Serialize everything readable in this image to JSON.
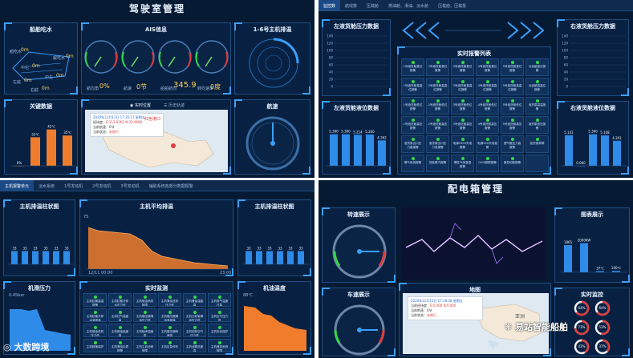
{
  "q1": {
    "title": "驾驶室管理",
    "panels": {
      "ship": "船舶吃水",
      "ais": "AIS信息",
      "exhaust": "1-6号主机排温",
      "key": "关键数据",
      "map_tab1": "实时位置",
      "map_tab2": "历史轨迹",
      "speed": "航速"
    },
    "draft_labels": [
      "艏吃水",
      "艉吃水",
      "中右",
      "中左",
      "左舷",
      "右舷"
    ],
    "draft_values": [
      "0m",
      "0m",
      "0m",
      "0m",
      "0m",
      "0m"
    ],
    "ais": {
      "items": [
        {
          "label": "航向角",
          "value": "0%"
        },
        {
          "label": "航速",
          "value": "0节"
        },
        {
          "label": "船舶航向",
          "value": "345.9"
        },
        {
          "label": "转向速率",
          "value": "0度"
        }
      ],
      "ticks": [
        "0",
        "5",
        "10",
        "15",
        "20",
        "25",
        "30"
      ]
    },
    "key_bars": [
      {
        "label": "0%",
        "value": 0,
        "top": "0%"
      },
      {
        "label": "33℃",
        "value": 33,
        "top": "33℃"
      },
      {
        "label": "42℃",
        "value": 42,
        "top": "42℃"
      },
      {
        "label": "35℃",
        "value": 35,
        "top": "35℃"
      }
    ],
    "popup": {
      "time": "2020年12月11日 17:35:17",
      "status": "星期五",
      "l1": "经纬度：",
      "l2": "当前航速：",
      "l3": "当前状态：",
      "v1": "E:113.9362 N:22.4696",
      "v2": "0节",
      "v3": "未航行",
      "place": "红色港口"
    }
  },
  "q2": {
    "tabs": [
      "监控数",
      "航线数",
      "压载舱",
      "燃油舱、滑油、淡水舱",
      "压载舱、压载泵"
    ],
    "left_top": "左液货舱压力数据",
    "left_bottom": "左液货舱液位数据",
    "right_top": "右液货舱压力数据",
    "right_bottom": "右液货舱液位数据",
    "alarm_title": "实时报警列表",
    "y_ticks": [
      "140",
      "120",
      "100",
      "80",
      "60",
      "40",
      "20",
      "0"
    ],
    "left_bars": [
      5.3,
      5.3,
      5.214,
      5.26,
      4.262
    ],
    "left_labels": [
      "5.300",
      "5.300",
      "5.214",
      "5.260",
      "4.262"
    ],
    "right_bars": [
      5.141,
      0.0,
      5.3,
      5.108,
      4.201
    ],
    "right_labels": [
      "5.141",
      "0.000",
      "5.300",
      "5.108",
      "4.201"
    ],
    "alarm_cells": [
      "1号液货舱高位报警",
      "2号液货舱高位报警",
      "3号液货舱高位报警",
      "4号液货舱高位报警",
      "5号液货舱高位报警",
      "污油舱高位报警",
      "1号液货舱高高位报警",
      "2号液货舱高高位报警",
      "3号液货舱高高位报警",
      "4号液货舱高高位报警",
      "5号液货舱高高位报警",
      "污油舱高高位报警",
      "1号液货舱低位报警",
      "2号液货舱低位报警",
      "3号液货舱低位报警",
      "4号液货舱低位报警",
      "5号液货舱低位报警",
      "液货泵高温报警",
      "1号液货舱高压报警",
      "2号液货舱高压报警",
      "3号液货舱高压报警",
      "4号液货舱高压报警",
      "5号液货舱高压报警",
      "液货泵低压报警",
      "液货泵出口压力高报警",
      "液货泵出口压力低报警",
      "电源220V失电报警",
      "电源24V失电报警",
      "透气桅压力高报警",
      "液货泵故障",
      "惰气系统报警",
      "货舱蒸汽报警",
      "惰性气体高温报警",
      "OCM超限报警",
      "紧急切断报警",
      ""
    ]
  },
  "q3": {
    "tabs": [
      "主机报警单元",
      "淡水系统",
      "1号发动机",
      "2号发动机",
      "3号发动机",
      "辅助系统各部分数据报警"
    ],
    "panels": {
      "exhaust_bar": "主机排温柱状图",
      "avg_exhaust": "主机平均排温",
      "exhaust_bar2": "主机排温柱状图",
      "oil_pressure": "机滑压力",
      "monitor": "实时监测",
      "oil_temp": "机油温度"
    },
    "bar_values": [
      33,
      33,
      33,
      33,
      33,
      33
    ],
    "bar_labels": [
      "33",
      "33",
      "33",
      "33",
      "33",
      "33"
    ],
    "avg_top": "75",
    "avg_start_label": "12/11 00:00",
    "avg_end_label": "23:00",
    "oil_pressure_label": "0.45bar",
    "oil_temp_label": "88℃",
    "monitor_cells": [
      "主机缸套高温报警",
      "主机缸套冷却水压力低",
      "主机喷油系统故障",
      "主机滑油进机压力低",
      "主机滑油温度高",
      "主机排气温度过高",
      "主机缸套冷却水温度高",
      "主机扫气温度高",
      "主机增压器滑油压力低",
      "主机增压器滑油温度高",
      "主机凸轮轴滑油压力低",
      "主机空气压力低",
      "主机燃油进机压力低",
      "主机燃油粘度高",
      "主机轴承温度高",
      "主机增压器转速高",
      "主机控制空气压力低",
      "主机安全保护",
      "主机超速保护",
      "主机滑油杂质报警",
      "主机主启动阀故障",
      "主机应急停车",
      "主机油雾浓度高",
      "主机遥控系统故障"
    ]
  },
  "q4": {
    "title": "配电箱管理",
    "panels": {
      "rpm": "转速展示",
      "hist": "图表展示",
      "map": "地图",
      "speed": "车速展示",
      "monitor": "实时监控"
    },
    "hist": [
      {
        "label": "1865",
        "value": 1865
      },
      {
        "label": "2000KW",
        "value": 2000
      },
      {
        "label": "37℃",
        "value": 37
      },
      {
        "label": "100℃",
        "value": 100
      }
    ],
    "popup": {
      "time": "2020年12月11日 17:18:48",
      "status": "星期五",
      "l1": "当前经纬度：",
      "l2": "当前航速：",
      "l3": "当前状态：",
      "v1": "E:0.000 N:0.000",
      "v2": "0节",
      "v3": "未航行",
      "place": "亚洲"
    },
    "rings": [
      "64%",
      "64%",
      "73%",
      "53%",
      "42%",
      "37%"
    ]
  },
  "watermarks": {
    "left": "大数跨境",
    "right": "易站智能船舶"
  },
  "colors": {
    "bg": "#071a33",
    "accent": "#3aa0ff",
    "bar": "#2f8be8",
    "orange": "#f07d2b",
    "green": "#32d74b"
  }
}
